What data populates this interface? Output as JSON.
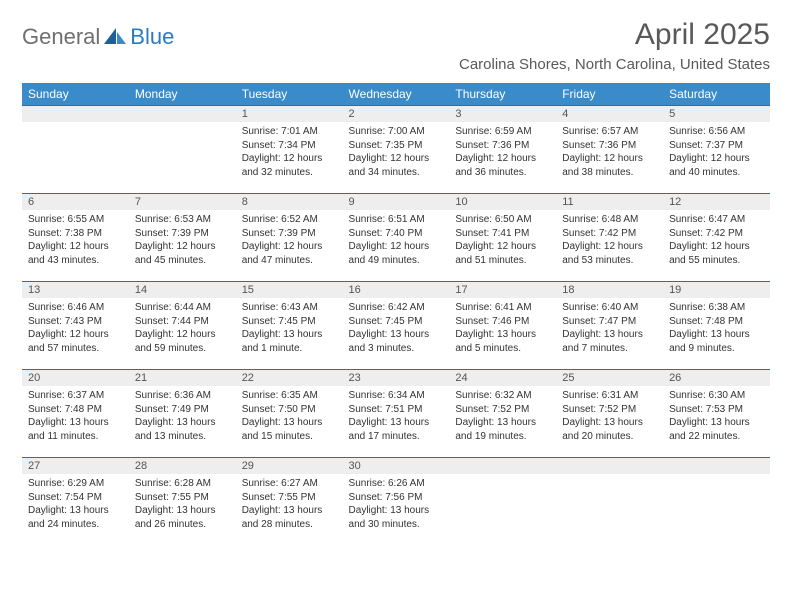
{
  "brand": {
    "word1": "General",
    "word2": "Blue"
  },
  "title": "April 2025",
  "location": "Carolina Shores, North Carolina, United States",
  "colors": {
    "header_bg": "#3a8bc9",
    "header_text": "#ffffff",
    "row_divider": "#2e6ea3",
    "daynum_bg": "#eeeeee",
    "text": "#333333",
    "title_text": "#595959",
    "logo_gray": "#6f6f6f",
    "logo_blue": "#2a7bbf"
  },
  "daysOfWeek": [
    "Sunday",
    "Monday",
    "Tuesday",
    "Wednesday",
    "Thursday",
    "Friday",
    "Saturday"
  ],
  "weeks": [
    [
      {
        "n": "",
        "sunrise": "",
        "sunset": "",
        "daylight1": "",
        "daylight2": ""
      },
      {
        "n": "",
        "sunrise": "",
        "sunset": "",
        "daylight1": "",
        "daylight2": ""
      },
      {
        "n": "1",
        "sunrise": "Sunrise: 7:01 AM",
        "sunset": "Sunset: 7:34 PM",
        "daylight1": "Daylight: 12 hours",
        "daylight2": "and 32 minutes."
      },
      {
        "n": "2",
        "sunrise": "Sunrise: 7:00 AM",
        "sunset": "Sunset: 7:35 PM",
        "daylight1": "Daylight: 12 hours",
        "daylight2": "and 34 minutes."
      },
      {
        "n": "3",
        "sunrise": "Sunrise: 6:59 AM",
        "sunset": "Sunset: 7:36 PM",
        "daylight1": "Daylight: 12 hours",
        "daylight2": "and 36 minutes."
      },
      {
        "n": "4",
        "sunrise": "Sunrise: 6:57 AM",
        "sunset": "Sunset: 7:36 PM",
        "daylight1": "Daylight: 12 hours",
        "daylight2": "and 38 minutes."
      },
      {
        "n": "5",
        "sunrise": "Sunrise: 6:56 AM",
        "sunset": "Sunset: 7:37 PM",
        "daylight1": "Daylight: 12 hours",
        "daylight2": "and 40 minutes."
      }
    ],
    [
      {
        "n": "6",
        "sunrise": "Sunrise: 6:55 AM",
        "sunset": "Sunset: 7:38 PM",
        "daylight1": "Daylight: 12 hours",
        "daylight2": "and 43 minutes."
      },
      {
        "n": "7",
        "sunrise": "Sunrise: 6:53 AM",
        "sunset": "Sunset: 7:39 PM",
        "daylight1": "Daylight: 12 hours",
        "daylight2": "and 45 minutes."
      },
      {
        "n": "8",
        "sunrise": "Sunrise: 6:52 AM",
        "sunset": "Sunset: 7:39 PM",
        "daylight1": "Daylight: 12 hours",
        "daylight2": "and 47 minutes."
      },
      {
        "n": "9",
        "sunrise": "Sunrise: 6:51 AM",
        "sunset": "Sunset: 7:40 PM",
        "daylight1": "Daylight: 12 hours",
        "daylight2": "and 49 minutes."
      },
      {
        "n": "10",
        "sunrise": "Sunrise: 6:50 AM",
        "sunset": "Sunset: 7:41 PM",
        "daylight1": "Daylight: 12 hours",
        "daylight2": "and 51 minutes."
      },
      {
        "n": "11",
        "sunrise": "Sunrise: 6:48 AM",
        "sunset": "Sunset: 7:42 PM",
        "daylight1": "Daylight: 12 hours",
        "daylight2": "and 53 minutes."
      },
      {
        "n": "12",
        "sunrise": "Sunrise: 6:47 AM",
        "sunset": "Sunset: 7:42 PM",
        "daylight1": "Daylight: 12 hours",
        "daylight2": "and 55 minutes."
      }
    ],
    [
      {
        "n": "13",
        "sunrise": "Sunrise: 6:46 AM",
        "sunset": "Sunset: 7:43 PM",
        "daylight1": "Daylight: 12 hours",
        "daylight2": "and 57 minutes."
      },
      {
        "n": "14",
        "sunrise": "Sunrise: 6:44 AM",
        "sunset": "Sunset: 7:44 PM",
        "daylight1": "Daylight: 12 hours",
        "daylight2": "and 59 minutes."
      },
      {
        "n": "15",
        "sunrise": "Sunrise: 6:43 AM",
        "sunset": "Sunset: 7:45 PM",
        "daylight1": "Daylight: 13 hours",
        "daylight2": "and 1 minute."
      },
      {
        "n": "16",
        "sunrise": "Sunrise: 6:42 AM",
        "sunset": "Sunset: 7:45 PM",
        "daylight1": "Daylight: 13 hours",
        "daylight2": "and 3 minutes."
      },
      {
        "n": "17",
        "sunrise": "Sunrise: 6:41 AM",
        "sunset": "Sunset: 7:46 PM",
        "daylight1": "Daylight: 13 hours",
        "daylight2": "and 5 minutes."
      },
      {
        "n": "18",
        "sunrise": "Sunrise: 6:40 AM",
        "sunset": "Sunset: 7:47 PM",
        "daylight1": "Daylight: 13 hours",
        "daylight2": "and 7 minutes."
      },
      {
        "n": "19",
        "sunrise": "Sunrise: 6:38 AM",
        "sunset": "Sunset: 7:48 PM",
        "daylight1": "Daylight: 13 hours",
        "daylight2": "and 9 minutes."
      }
    ],
    [
      {
        "n": "20",
        "sunrise": "Sunrise: 6:37 AM",
        "sunset": "Sunset: 7:48 PM",
        "daylight1": "Daylight: 13 hours",
        "daylight2": "and 11 minutes."
      },
      {
        "n": "21",
        "sunrise": "Sunrise: 6:36 AM",
        "sunset": "Sunset: 7:49 PM",
        "daylight1": "Daylight: 13 hours",
        "daylight2": "and 13 minutes."
      },
      {
        "n": "22",
        "sunrise": "Sunrise: 6:35 AM",
        "sunset": "Sunset: 7:50 PM",
        "daylight1": "Daylight: 13 hours",
        "daylight2": "and 15 minutes."
      },
      {
        "n": "23",
        "sunrise": "Sunrise: 6:34 AM",
        "sunset": "Sunset: 7:51 PM",
        "daylight1": "Daylight: 13 hours",
        "daylight2": "and 17 minutes."
      },
      {
        "n": "24",
        "sunrise": "Sunrise: 6:32 AM",
        "sunset": "Sunset: 7:52 PM",
        "daylight1": "Daylight: 13 hours",
        "daylight2": "and 19 minutes."
      },
      {
        "n": "25",
        "sunrise": "Sunrise: 6:31 AM",
        "sunset": "Sunset: 7:52 PM",
        "daylight1": "Daylight: 13 hours",
        "daylight2": "and 20 minutes."
      },
      {
        "n": "26",
        "sunrise": "Sunrise: 6:30 AM",
        "sunset": "Sunset: 7:53 PM",
        "daylight1": "Daylight: 13 hours",
        "daylight2": "and 22 minutes."
      }
    ],
    [
      {
        "n": "27",
        "sunrise": "Sunrise: 6:29 AM",
        "sunset": "Sunset: 7:54 PM",
        "daylight1": "Daylight: 13 hours",
        "daylight2": "and 24 minutes."
      },
      {
        "n": "28",
        "sunrise": "Sunrise: 6:28 AM",
        "sunset": "Sunset: 7:55 PM",
        "daylight1": "Daylight: 13 hours",
        "daylight2": "and 26 minutes."
      },
      {
        "n": "29",
        "sunrise": "Sunrise: 6:27 AM",
        "sunset": "Sunset: 7:55 PM",
        "daylight1": "Daylight: 13 hours",
        "daylight2": "and 28 minutes."
      },
      {
        "n": "30",
        "sunrise": "Sunrise: 6:26 AM",
        "sunset": "Sunset: 7:56 PM",
        "daylight1": "Daylight: 13 hours",
        "daylight2": "and 30 minutes."
      },
      {
        "n": "",
        "sunrise": "",
        "sunset": "",
        "daylight1": "",
        "daylight2": ""
      },
      {
        "n": "",
        "sunrise": "",
        "sunset": "",
        "daylight1": "",
        "daylight2": ""
      },
      {
        "n": "",
        "sunrise": "",
        "sunset": "",
        "daylight1": "",
        "daylight2": ""
      }
    ]
  ]
}
